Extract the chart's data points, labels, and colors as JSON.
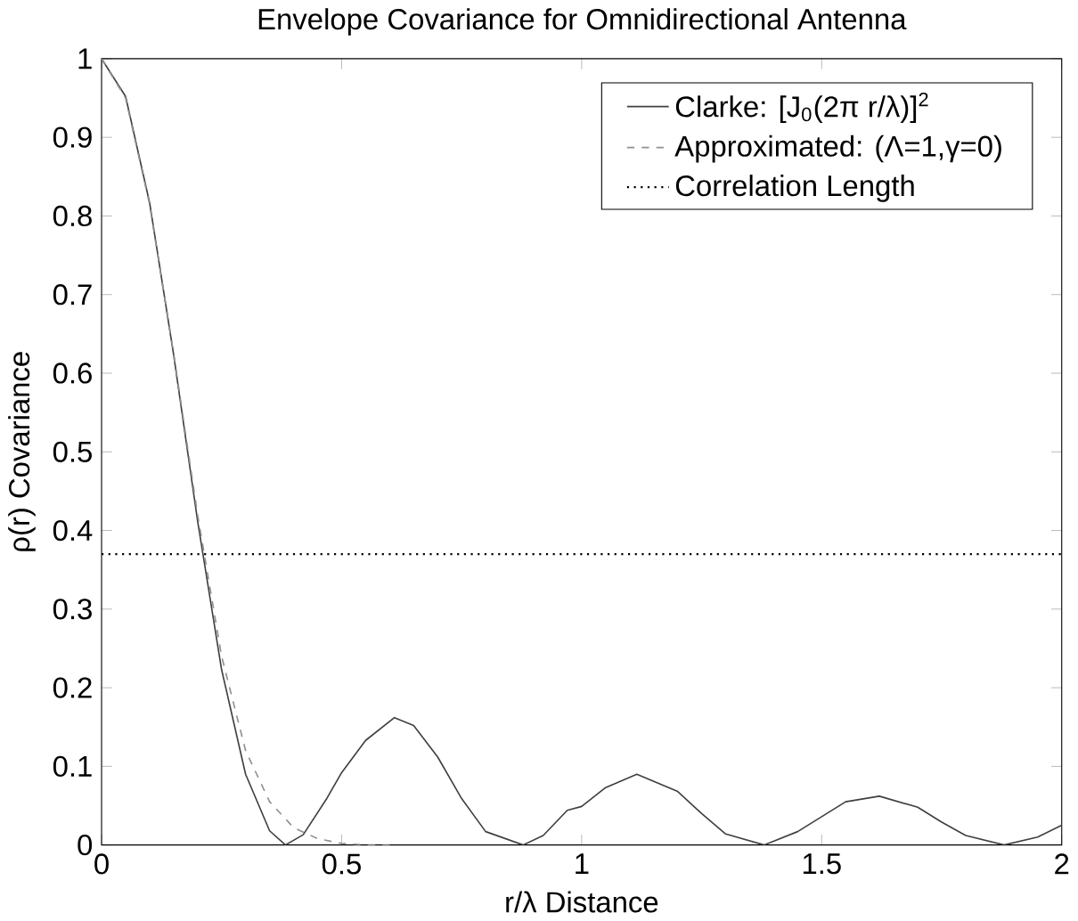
{
  "chart_data": {
    "type": "line",
    "title": "Envelope Covariance for Omnidirectional Antenna",
    "xlabel": "r/λ  Distance",
    "ylabel": "ρ(r)  Covariance",
    "xlim": [
      0,
      2
    ],
    "xticks": [
      0,
      0.5,
      1,
      1.5,
      2
    ],
    "ylim": [
      0,
      1
    ],
    "yticks": [
      0,
      0.1,
      0.2,
      0.3,
      0.4,
      0.5,
      0.6,
      0.7,
      0.8,
      0.9,
      1
    ],
    "legend": "top right",
    "grid": false,
    "marker": "none",
    "series": [
      {
        "name": "Clarke: [J$_{0}$(2π r/λ)]$^{2}$",
        "color": "#404040",
        "line_style": "solid",
        "x": [
          0,
          0.05,
          0.1,
          0.15,
          0.2,
          0.25,
          0.3,
          0.35,
          0.383,
          0.42,
          0.47,
          0.5,
          0.55,
          0.61,
          0.65,
          0.7,
          0.75,
          0.8,
          0.878,
          0.92,
          0.97,
          1.0,
          1.05,
          1.115,
          1.2,
          1.25,
          1.3,
          1.38,
          1.45,
          1.5,
          1.55,
          1.62,
          1.7,
          1.75,
          1.8,
          1.88,
          1.95,
          2.0
        ],
        "values": [
          1,
          0.952,
          0.817,
          0.624,
          0.412,
          0.223,
          0.09,
          0.018,
          0,
          0.013,
          0.06,
          0.092,
          0.133,
          0.162,
          0.152,
          0.112,
          0.059,
          0.017,
          0,
          0.012,
          0.044,
          0.049,
          0.073,
          0.09,
          0.068,
          0.04,
          0.014,
          0,
          0.017,
          0.036,
          0.055,
          0.062,
          0.048,
          0.029,
          0.012,
          0,
          0.01,
          0.025
        ]
      },
      {
        "name": "Approximated: (Λ=1,γ=0)",
        "color": "#909090",
        "line_style": "dashed",
        "x": [
          0,
          0.05,
          0.1,
          0.15,
          0.2,
          0.25,
          0.3,
          0.35,
          0.4,
          0.45,
          0.5,
          0.55,
          0.6
        ],
        "values": [
          1,
          0.95,
          0.815,
          0.625,
          0.42,
          0.24,
          0.12,
          0.055,
          0.022,
          0.008,
          0.002,
          0,
          0
        ]
      }
    ],
    "ref_lines": [
      {
        "axis": "y",
        "value": 0.37,
        "label": "Correlation Length",
        "color": "#000000",
        "line_style": "dotted"
      }
    ]
  }
}
